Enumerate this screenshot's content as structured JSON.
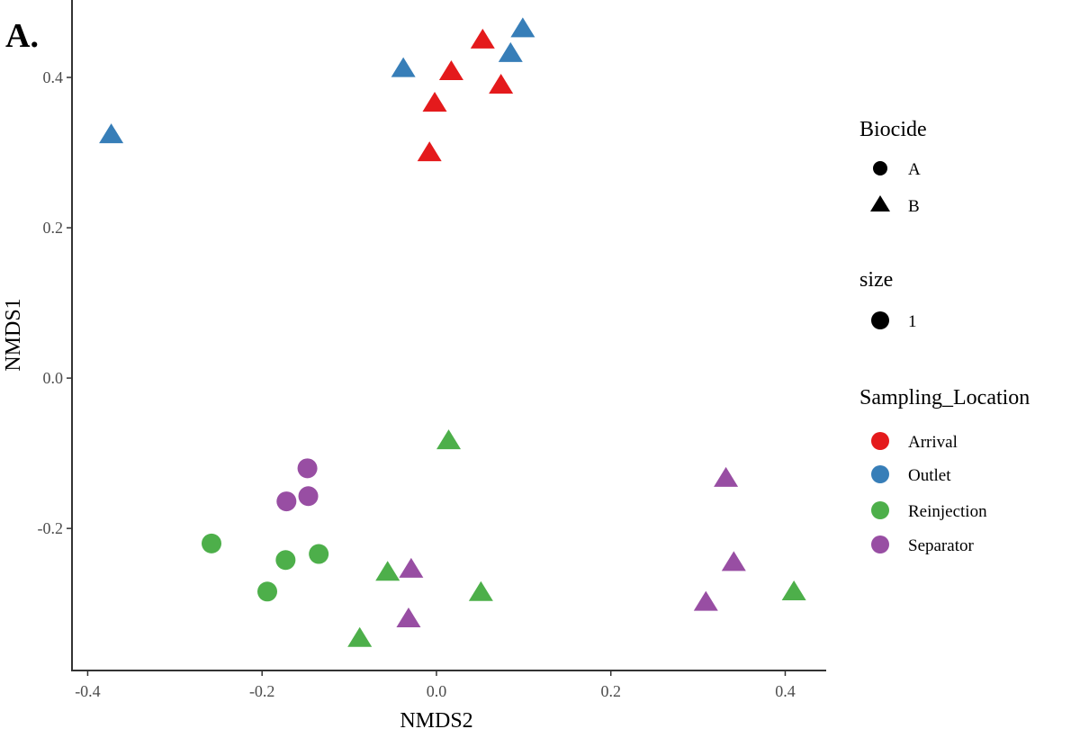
{
  "panel_label": "A.",
  "chart_data": {
    "type": "scatter",
    "xlabel": "NMDS2",
    "ylabel": "NMDS1",
    "xlim": [
      -0.418,
      0.447
    ],
    "ylim": [
      -0.389,
      0.503
    ],
    "xticks": [
      -0.4,
      -0.2,
      0.0,
      0.2,
      0.4
    ],
    "xtick_labels": [
      "-0.4",
      "-0.2",
      "0.0",
      "0.2",
      "0.4"
    ],
    "yticks": [
      0.4,
      0.2,
      0.0,
      -0.2
    ],
    "ytick_labels": [
      "0.4",
      "0.2",
      "0.0",
      "-0.2"
    ],
    "grid": false,
    "legend_position": "right",
    "legends": {
      "shape": {
        "title": "Biocide",
        "entries": [
          {
            "label": "A",
            "shape": "circle"
          },
          {
            "label": "B",
            "shape": "triangle"
          }
        ]
      },
      "size": {
        "title": "size",
        "entries": [
          {
            "label": "1"
          }
        ]
      },
      "color": {
        "title": "Sampling_Location",
        "entries": [
          {
            "label": "Arrival",
            "color": "#E41A1C"
          },
          {
            "label": "Outlet",
            "color": "#377EB8"
          },
          {
            "label": "Reinjection",
            "color": "#4DAF4A"
          },
          {
            "label": "Separator",
            "color": "#984EA3"
          }
        ]
      }
    },
    "series": [
      {
        "name": "Arrival",
        "color": "#E41A1C",
        "points": [
          {
            "x": 0.053,
            "y": 0.449,
            "biocide": "B"
          },
          {
            "x": 0.017,
            "y": 0.407,
            "biocide": "B"
          },
          {
            "x": 0.074,
            "y": 0.389,
            "biocide": "B"
          },
          {
            "x": -0.002,
            "y": 0.365,
            "biocide": "B"
          },
          {
            "x": -0.008,
            "y": 0.299,
            "biocide": "B"
          }
        ]
      },
      {
        "name": "Outlet",
        "color": "#377EB8",
        "points": [
          {
            "x": 0.099,
            "y": 0.464,
            "biocide": "B"
          },
          {
            "x": 0.085,
            "y": 0.431,
            "biocide": "B"
          },
          {
            "x": -0.038,
            "y": 0.411,
            "biocide": "B"
          },
          {
            "x": -0.373,
            "y": 0.323,
            "biocide": "B"
          }
        ]
      },
      {
        "name": "Reinjection",
        "color": "#4DAF4A",
        "points": [
          {
            "x": 0.014,
            "y": -0.084,
            "biocide": "B"
          },
          {
            "x": -0.056,
            "y": -0.259,
            "biocide": "B"
          },
          {
            "x": 0.051,
            "y": -0.286,
            "biocide": "B"
          },
          {
            "x": -0.088,
            "y": -0.347,
            "biocide": "B"
          },
          {
            "x": 0.41,
            "y": -0.285,
            "biocide": "B"
          },
          {
            "x": -0.258,
            "y": -0.22,
            "biocide": "A"
          },
          {
            "x": -0.173,
            "y": -0.242,
            "biocide": "A"
          },
          {
            "x": -0.135,
            "y": -0.234,
            "biocide": "A"
          },
          {
            "x": -0.194,
            "y": -0.284,
            "biocide": "A"
          }
        ]
      },
      {
        "name": "Separator",
        "color": "#984EA3",
        "points": [
          {
            "x": -0.148,
            "y": -0.12,
            "biocide": "A"
          },
          {
            "x": -0.147,
            "y": -0.157,
            "biocide": "A"
          },
          {
            "x": -0.172,
            "y": -0.164,
            "biocide": "A"
          },
          {
            "x": 0.332,
            "y": -0.134,
            "biocide": "B"
          },
          {
            "x": -0.029,
            "y": -0.255,
            "biocide": "B"
          },
          {
            "x": 0.341,
            "y": -0.246,
            "biocide": "B"
          },
          {
            "x": 0.309,
            "y": -0.299,
            "biocide": "B"
          },
          {
            "x": -0.032,
            "y": -0.321,
            "biocide": "B"
          }
        ]
      }
    ]
  }
}
